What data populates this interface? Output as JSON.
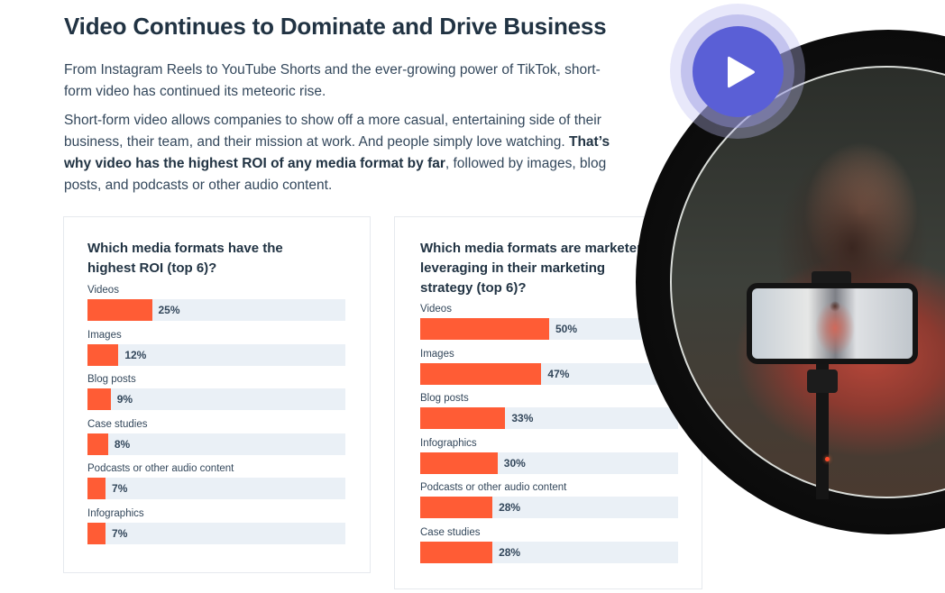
{
  "header": {
    "title": "Video Continues to Dominate and Drive Business"
  },
  "body": {
    "paragraph1": "From Instagram Reels to YouTube Shorts and the ever-growing power of TikTok, short-form video has continued its meteoric rise.",
    "paragraph2_start": "Short-form video allows companies to show off a more casual, entertaining side of their business, their team, and their mission at work. And people simply love watching. ",
    "paragraph2_bold": "That’s why video has the highest ROI of any media format by far",
    "paragraph2_end": ", followed by images, blog posts, and podcasts or other audio content."
  },
  "media": {
    "play_icon": "play-icon",
    "accent_color": "#5a5fd6"
  },
  "colors": {
    "bar": "#ff5c35",
    "track": "#eaf0f6",
    "text": "#213343"
  },
  "chart_data": [
    {
      "type": "bar",
      "orientation": "horizontal",
      "title": "Which media formats have the highest ROI (top 6)?",
      "categories": [
        "Videos",
        "Images",
        "Blog posts",
        "Case studies",
        "Podcasts or other audio content",
        "Infographics"
      ],
      "values": [
        25,
        12,
        9,
        8,
        7,
        7
      ],
      "labels": [
        "25%",
        "12%",
        "9%",
        "8%",
        "7%",
        "7%"
      ],
      "xlabel": "",
      "ylabel": "",
      "xlim": [
        0,
        100
      ],
      "grid": false,
      "legend": "none"
    },
    {
      "type": "bar",
      "orientation": "horizontal",
      "title": "Which media formats are marketers leveraging in their marketing strategy (top 6)?",
      "categories": [
        "Videos",
        "Images",
        "Blog posts",
        "Infographics",
        "Podcasts or other audio content",
        "Case studies"
      ],
      "values": [
        50,
        47,
        33,
        30,
        28,
        28
      ],
      "labels": [
        "50%",
        "47%",
        "33%",
        "30%",
        "28%",
        "28%"
      ],
      "xlabel": "",
      "ylabel": "",
      "xlim": [
        0,
        100
      ],
      "grid": false,
      "legend": "none"
    }
  ]
}
